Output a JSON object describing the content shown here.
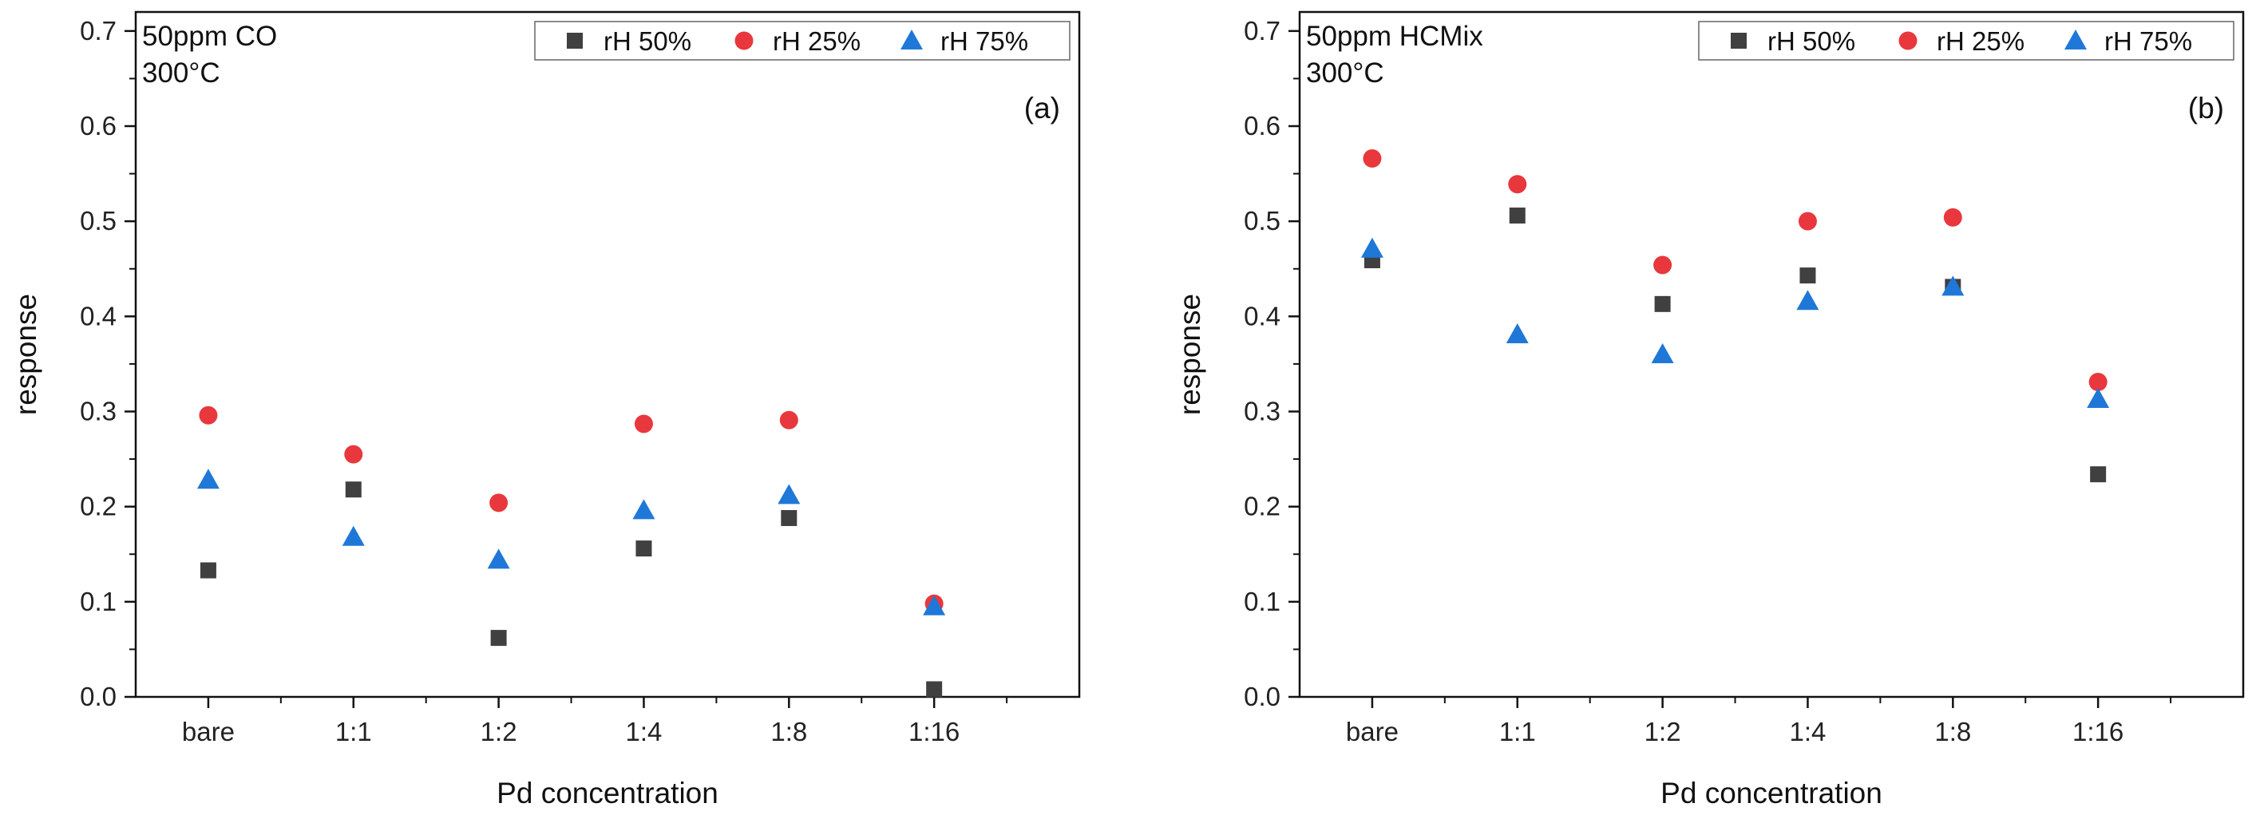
{
  "chart_data": [
    {
      "type": "scatter",
      "panel_label": "(a)",
      "annotation": [
        "50ppm CO",
        "300°C"
      ],
      "xlabel": "Pd concentration",
      "ylabel": "response",
      "categories": [
        "bare",
        "1:1",
        "1:2",
        "1:4",
        "1:8",
        "1:16"
      ],
      "ylim": [
        0,
        0.72
      ],
      "yticks": [
        "0.0",
        "0.1",
        "0.2",
        "0.3",
        "0.4",
        "0.5",
        "0.6",
        "0.7"
      ],
      "legend_position": "top-right",
      "series": [
        {
          "name": "rH 50%",
          "marker": "square",
          "color": "#404040",
          "values": [
            0.133,
            0.218,
            0.062,
            0.156,
            0.188,
            0.008
          ]
        },
        {
          "name": "rH 25%",
          "marker": "circle",
          "color": "#e8383d",
          "values": [
            0.296,
            0.255,
            0.204,
            0.287,
            0.291,
            0.098
          ]
        },
        {
          "name": "rH 75%",
          "marker": "triangle",
          "color": "#1f78d8",
          "values": [
            0.228,
            0.168,
            0.144,
            0.196,
            0.212,
            0.095
          ]
        }
      ]
    },
    {
      "type": "scatter",
      "panel_label": "(b)",
      "annotation": [
        "50ppm HCMix",
        "300°C"
      ],
      "xlabel": "Pd concentration",
      "ylabel": "response",
      "categories": [
        "bare",
        "1:1",
        "1:2",
        "1:4",
        "1:8",
        "1:16"
      ],
      "ylim": [
        0,
        0.72
      ],
      "yticks": [
        "0.0",
        "0.1",
        "0.2",
        "0.3",
        "0.4",
        "0.5",
        "0.6",
        "0.7"
      ],
      "legend_position": "top-right",
      "series": [
        {
          "name": "rH 50%",
          "marker": "square",
          "color": "#404040",
          "values": [
            0.459,
            0.506,
            0.413,
            0.443,
            0.431,
            0.234
          ]
        },
        {
          "name": "rH 25%",
          "marker": "circle",
          "color": "#e8383d",
          "values": [
            0.566,
            0.539,
            0.454,
            0.5,
            0.504,
            0.331
          ]
        },
        {
          "name": "rH 75%",
          "marker": "triangle",
          "color": "#1f78d8",
          "values": [
            0.471,
            0.381,
            0.36,
            0.416,
            0.431,
            0.313
          ]
        }
      ]
    }
  ]
}
